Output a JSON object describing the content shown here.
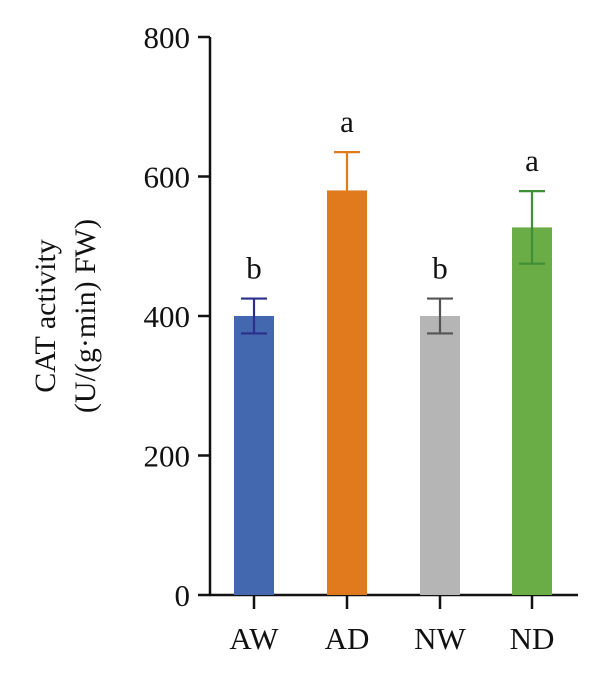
{
  "chart_data": {
    "type": "bar",
    "title": "",
    "xlabel": "",
    "ylabel_lines": [
      "CAT activity",
      "(U/(g·min) FW)"
    ],
    "ylim": [
      0,
      800
    ],
    "yticks": [
      0,
      200,
      400,
      600,
      800
    ],
    "categories": [
      "AW",
      "AD",
      "NW",
      "ND"
    ],
    "values": [
      400,
      580,
      400,
      527
    ],
    "errors": [
      25,
      55,
      25,
      52
    ],
    "significance": [
      "b",
      "a",
      "b",
      "a"
    ],
    "colors": [
      "#4468b0",
      "#e07a1c",
      "#b5b5b5",
      "#6aac45"
    ],
    "error_colors": [
      "#2b2f8a",
      "#e07a1c",
      "#555555",
      "#3f8f34"
    ],
    "grid": false,
    "legend": "none"
  }
}
